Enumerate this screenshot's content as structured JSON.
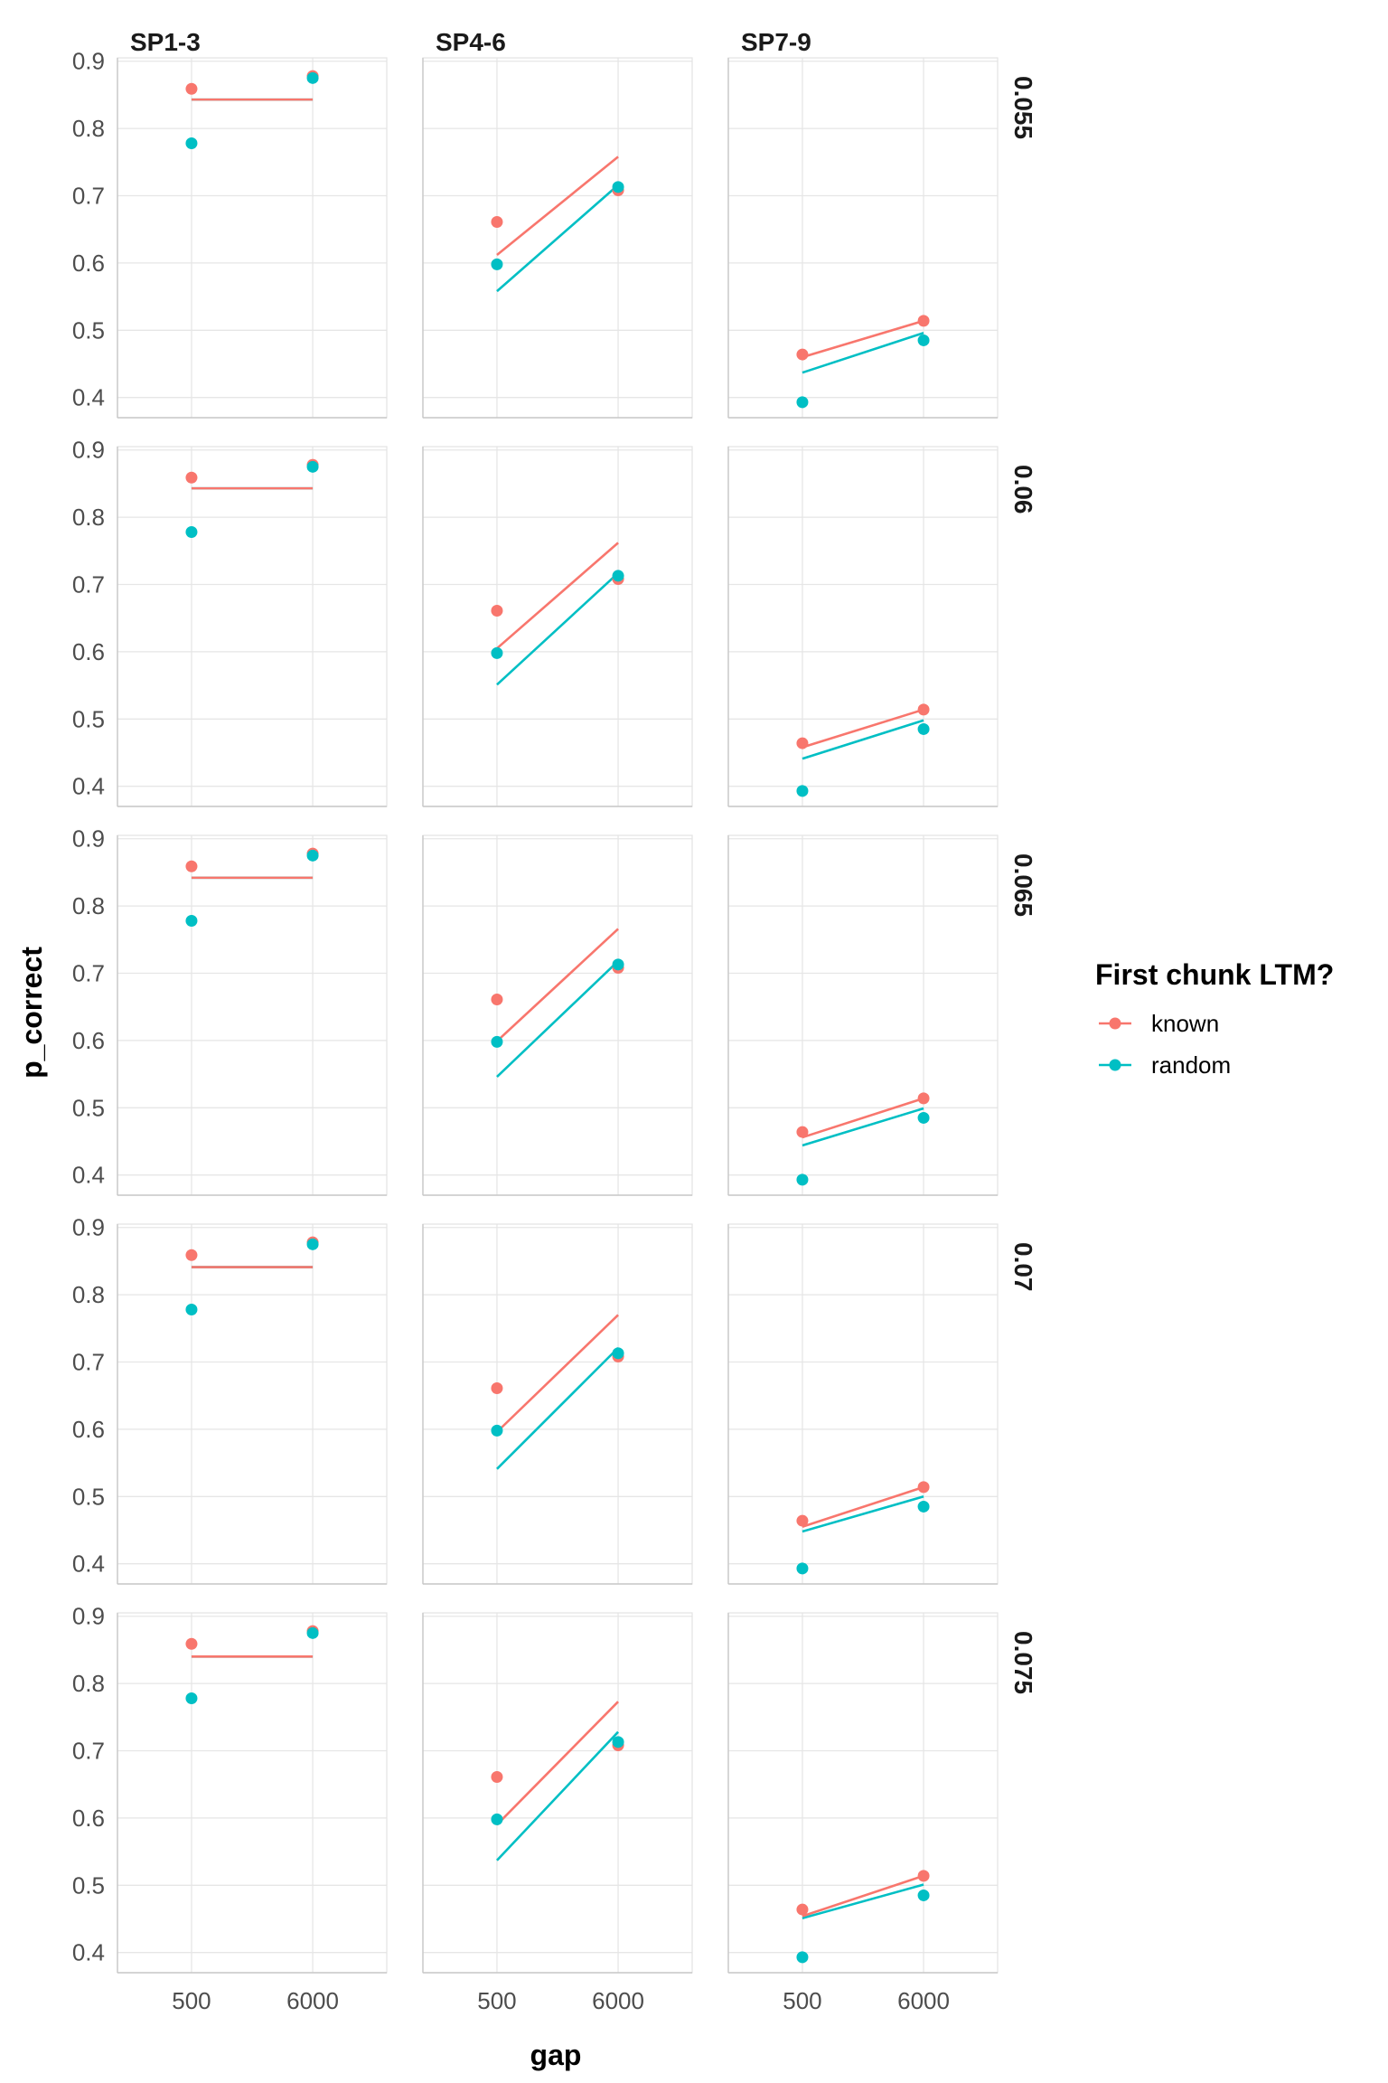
{
  "chart_data": {
    "type": "scatter",
    "xlabel": "gap",
    "ylabel": "p_correct",
    "x_categories": [
      "500",
      "6000"
    ],
    "ylim": [
      0.37,
      0.905
    ],
    "y_ticks": [
      "0.4",
      "0.5",
      "0.6",
      "0.7",
      "0.8",
      "0.9"
    ],
    "grid": true,
    "column_facets": [
      "SP1-3",
      "SP4-6",
      "SP7-9"
    ],
    "row_facets": [
      "0.055",
      "0.06",
      "0.065",
      "0.07",
      "0.075"
    ],
    "legend": {
      "title": "First chunk LTM?",
      "placement": "right",
      "entries": [
        {
          "label": "known",
          "color": "#F8766D"
        },
        {
          "label": "random",
          "color": "#00BFC4"
        }
      ]
    },
    "colors": {
      "known": "#F8766D",
      "random": "#00BFC4",
      "grid": "#e6e6e6",
      "axis": "#c8c8c8"
    },
    "observed": {
      "SP1-3": {
        "known": [
          0.859,
          0.878
        ],
        "random": [
          0.778,
          0.875
        ]
      },
      "SP4-6": {
        "known": [
          0.661,
          0.708
        ],
        "random": [
          0.598,
          0.713
        ]
      },
      "SP7-9": {
        "known": [
          0.464,
          0.514
        ],
        "random": [
          0.393,
          0.485
        ]
      }
    },
    "panels": [
      {
        "row": "0.055",
        "col": "SP1-3",
        "model": {
          "known": [
            0.843,
            0.843
          ],
          "random": [
            0.843,
            0.843
          ]
        }
      },
      {
        "row": "0.055",
        "col": "SP4-6",
        "model": {
          "known": [
            0.612,
            0.758
          ],
          "random": [
            0.558,
            0.716
          ]
        }
      },
      {
        "row": "0.055",
        "col": "SP7-9",
        "model": {
          "known": [
            0.46,
            0.514
          ],
          "random": [
            0.437,
            0.496
          ]
        }
      },
      {
        "row": "0.06",
        "col": "SP1-3",
        "model": {
          "known": [
            0.843,
            0.843
          ],
          "random": [
            0.843,
            0.843
          ]
        }
      },
      {
        "row": "0.06",
        "col": "SP4-6",
        "model": {
          "known": [
            0.605,
            0.762
          ],
          "random": [
            0.551,
            0.717
          ]
        }
      },
      {
        "row": "0.06",
        "col": "SP7-9",
        "model": {
          "known": [
            0.458,
            0.514
          ],
          "random": [
            0.441,
            0.498
          ]
        }
      },
      {
        "row": "0.065",
        "col": "SP1-3",
        "model": {
          "known": [
            0.842,
            0.842
          ],
          "random": [
            0.842,
            0.842
          ]
        }
      },
      {
        "row": "0.065",
        "col": "SP4-6",
        "model": {
          "known": [
            0.599,
            0.766
          ],
          "random": [
            0.546,
            0.718
          ]
        }
      },
      {
        "row": "0.065",
        "col": "SP7-9",
        "model": {
          "known": [
            0.456,
            0.514
          ],
          "random": [
            0.444,
            0.499
          ]
        }
      },
      {
        "row": "0.07",
        "col": "SP1-3",
        "model": {
          "known": [
            0.841,
            0.841
          ],
          "random": [
            0.841,
            0.841
          ]
        }
      },
      {
        "row": "0.07",
        "col": "SP4-6",
        "model": {
          "known": [
            0.596,
            0.77
          ],
          "random": [
            0.541,
            0.721
          ]
        }
      },
      {
        "row": "0.07",
        "col": "SP7-9",
        "model": {
          "known": [
            0.455,
            0.514
          ],
          "random": [
            0.448,
            0.5
          ]
        }
      },
      {
        "row": "0.075",
        "col": "SP1-3",
        "model": {
          "known": [
            0.84,
            0.84
          ],
          "random": [
            0.84,
            0.84
          ]
        }
      },
      {
        "row": "0.075",
        "col": "SP4-6",
        "model": {
          "known": [
            0.59,
            0.773
          ],
          "random": [
            0.537,
            0.728
          ]
        }
      },
      {
        "row": "0.075",
        "col": "SP7-9",
        "model": {
          "known": [
            0.454,
            0.514
          ],
          "random": [
            0.451,
            0.501
          ]
        }
      }
    ]
  }
}
